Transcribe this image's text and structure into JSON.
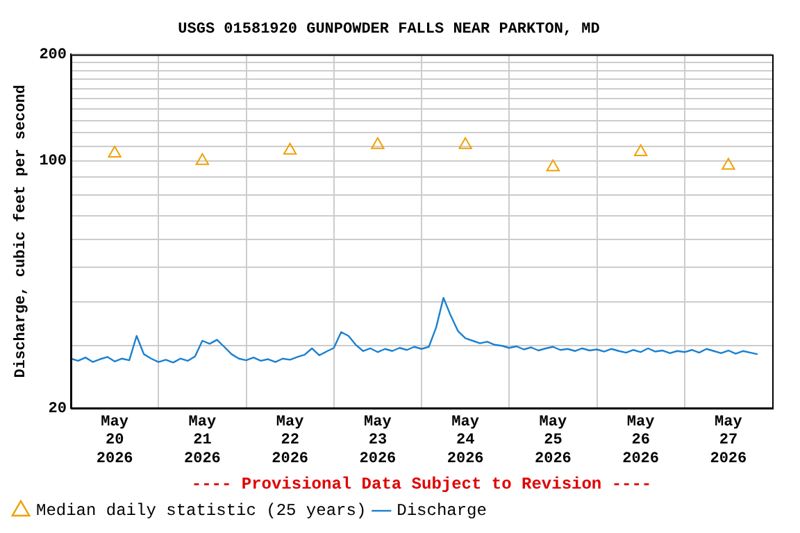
{
  "chart_data": {
    "type": "line",
    "title": "USGS 01581920 GUNPOWDER FALLS NEAR PARKTON, MD",
    "ylabel": "Discharge, cubic feet per second",
    "annotations": [
      "---- Provisional Data Subject to Revision ----"
    ],
    "log": "y",
    "grid": true,
    "legend": "bottom",
    "xlim": [
      "2026-05-20T00:00",
      "2026-05-28T00:00"
    ],
    "xticks": [
      {
        "value": "2026-05-20T12:00",
        "label": "May\n20\n2026"
      },
      {
        "value": "2026-05-21T00:00",
        "label": null
      },
      {
        "value": "2026-05-21T12:00",
        "label": "May\n21\n2026"
      },
      {
        "value": "2026-05-22T00:00",
        "label": null
      },
      {
        "value": "2026-05-22T12:00",
        "label": "May\n22\n2026"
      },
      {
        "value": "2026-05-23T00:00",
        "label": null
      },
      {
        "value": "2026-05-23T12:00",
        "label": "May\n23\n2026"
      },
      {
        "value": "2026-05-24T00:00",
        "label": null
      },
      {
        "value": "2026-05-24T12:00",
        "label": "May\n24\n2026"
      },
      {
        "value": "2026-05-25T00:00",
        "label": null
      },
      {
        "value": "2026-05-25T12:00",
        "label": "May\n25\n2026"
      },
      {
        "value": "2026-05-26T00:00",
        "label": null
      },
      {
        "value": "2026-05-26T12:00",
        "label": "May\n26\n2026"
      },
      {
        "value": "2026-05-27T00:00",
        "label": null
      },
      {
        "value": "2026-05-27T12:00",
        "label": "May\n27\n2026"
      }
    ],
    "ylim": [
      20,
      200
    ],
    "yticks": [
      20,
      {
        "value": 30,
        "label": null
      },
      {
        "value": 40,
        "label": null
      },
      {
        "value": 50,
        "label": null
      },
      {
        "value": 60,
        "label": null
      },
      {
        "value": 70,
        "label": null
      },
      {
        "value": 80,
        "label": null
      },
      {
        "value": 90,
        "label": null
      },
      100,
      {
        "value": 110,
        "label": null
      },
      {
        "value": 120,
        "label": null
      },
      {
        "value": 130,
        "label": null
      },
      {
        "value": 140,
        "label": null
      },
      {
        "value": 150,
        "label": null
      },
      {
        "value": 160,
        "label": null
      },
      {
        "value": 170,
        "label": null
      },
      {
        "value": 180,
        "label": null
      },
      {
        "value": 190,
        "label": null
      },
      200
    ],
    "series": [
      {
        "name": "Median daily statistic (25 years)",
        "type": "scatter",
        "marker": "triangle",
        "color": "#f0a000",
        "x": [
          "2026-05-20T12:00",
          "2026-05-21T12:00",
          "2026-05-22T12:00",
          "2026-05-23T12:00",
          "2026-05-24T12:00",
          "2026-05-25T12:00",
          "2026-05-26T12:00",
          "2026-05-27T12:00"
        ],
        "values": [
          105,
          100,
          107,
          111,
          111,
          96,
          106,
          97
        ]
      },
      {
        "name": "Discharge",
        "marker": "none",
        "color": "#1a80d0",
        "x": [
          "2026-05-20T00:00",
          "2026-05-20T02:00",
          "2026-05-20T04:00",
          "2026-05-20T06:00",
          "2026-05-20T08:00",
          "2026-05-20T10:00",
          "2026-05-20T12:00",
          "2026-05-20T14:00",
          "2026-05-20T16:00",
          "2026-05-20T18:00",
          "2026-05-20T20:00",
          "2026-05-20T22:00",
          "2026-05-21T00:00",
          "2026-05-21T02:00",
          "2026-05-21T04:00",
          "2026-05-21T06:00",
          "2026-05-21T08:00",
          "2026-05-21T10:00",
          "2026-05-21T12:00",
          "2026-05-21T14:00",
          "2026-05-21T16:00",
          "2026-05-21T18:00",
          "2026-05-21T20:00",
          "2026-05-21T22:00",
          "2026-05-22T00:00",
          "2026-05-22T02:00",
          "2026-05-22T04:00",
          "2026-05-22T06:00",
          "2026-05-22T08:00",
          "2026-05-22T10:00",
          "2026-05-22T12:00",
          "2026-05-22T14:00",
          "2026-05-22T16:00",
          "2026-05-22T18:00",
          "2026-05-22T20:00",
          "2026-05-22T22:00",
          "2026-05-23T00:00",
          "2026-05-23T02:00",
          "2026-05-23T04:00",
          "2026-05-23T06:00",
          "2026-05-23T08:00",
          "2026-05-23T10:00",
          "2026-05-23T12:00",
          "2026-05-23T14:00",
          "2026-05-23T16:00",
          "2026-05-23T18:00",
          "2026-05-23T20:00",
          "2026-05-23T22:00",
          "2026-05-24T00:00",
          "2026-05-24T02:00",
          "2026-05-24T04:00",
          "2026-05-24T06:00",
          "2026-05-24T08:00",
          "2026-05-24T10:00",
          "2026-05-24T12:00",
          "2026-05-24T14:00",
          "2026-05-24T16:00",
          "2026-05-24T18:00",
          "2026-05-24T20:00",
          "2026-05-24T22:00",
          "2026-05-25T00:00",
          "2026-05-25T02:00",
          "2026-05-25T04:00",
          "2026-05-25T06:00",
          "2026-05-25T08:00",
          "2026-05-25T10:00",
          "2026-05-25T12:00",
          "2026-05-25T14:00",
          "2026-05-25T16:00",
          "2026-05-25T18:00",
          "2026-05-25T20:00",
          "2026-05-25T22:00",
          "2026-05-26T00:00",
          "2026-05-26T02:00",
          "2026-05-26T04:00",
          "2026-05-26T06:00",
          "2026-05-26T08:00",
          "2026-05-26T10:00",
          "2026-05-26T12:00",
          "2026-05-26T14:00",
          "2026-05-26T16:00",
          "2026-05-26T18:00",
          "2026-05-26T20:00",
          "2026-05-26T22:00",
          "2026-05-27T00:00",
          "2026-05-27T02:00",
          "2026-05-27T04:00",
          "2026-05-27T06:00",
          "2026-05-27T08:00",
          "2026-05-27T10:00",
          "2026-05-27T12:00",
          "2026-05-27T14:00",
          "2026-05-27T16:00",
          "2026-05-27T18:00",
          "2026-05-27T20:00"
        ],
        "values": [
          27.6,
          27.2,
          27.8,
          27.0,
          27.5,
          27.9,
          27.1,
          27.6,
          27.3,
          32.0,
          28.4,
          27.6,
          27.0,
          27.4,
          26.9,
          27.6,
          27.2,
          28.0,
          31.0,
          30.4,
          31.2,
          29.8,
          28.4,
          27.6,
          27.3,
          27.8,
          27.2,
          27.5,
          27.0,
          27.6,
          27.4,
          27.9,
          28.3,
          29.5,
          28.2,
          28.9,
          29.6,
          32.8,
          32.0,
          30.2,
          29.0,
          29.5,
          28.8,
          29.4,
          29.0,
          29.6,
          29.2,
          29.8,
          29.4,
          29.8,
          33.8,
          41.0,
          36.5,
          33.0,
          31.5,
          31.0,
          30.5,
          30.8,
          30.2,
          30.0,
          29.6,
          29.9,
          29.3,
          29.7,
          29.1,
          29.5,
          29.8,
          29.2,
          29.4,
          29.0,
          29.5,
          29.1,
          29.3,
          28.9,
          29.4,
          29.0,
          28.7,
          29.2,
          28.8,
          29.5,
          28.9,
          29.1,
          28.6,
          29.0,
          28.8,
          29.2,
          28.7,
          29.4,
          29.0,
          28.6,
          29.1,
          28.5,
          29.0,
          28.7,
          28.4
        ]
      }
    ]
  }
}
